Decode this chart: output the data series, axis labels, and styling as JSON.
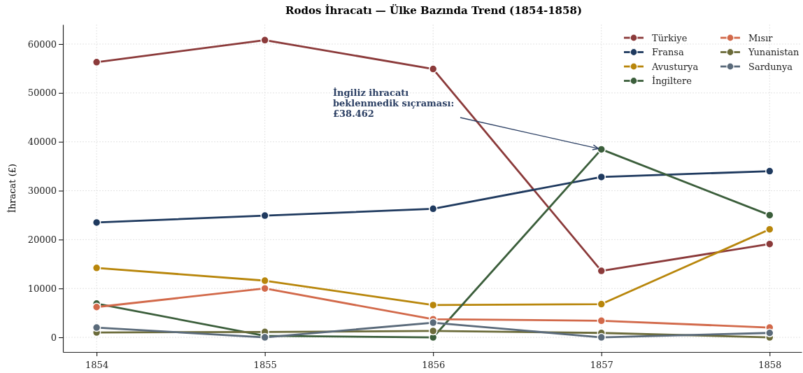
{
  "chart_data": {
    "type": "line",
    "title": "Rodos İhracatı — Ülke Bazında Trend (1854-1858)",
    "ylabel": "İhracat (£)",
    "x": [
      1854,
      1855,
      1856,
      1857,
      1858
    ],
    "xlim": [
      1853.8,
      1858.19
    ],
    "xticks": [
      1854,
      1855,
      1856,
      1857,
      1858
    ],
    "ylim": [
      -3000,
      64000
    ],
    "yticks": [
      0,
      10000,
      20000,
      30000,
      40000,
      50000,
      60000
    ],
    "grid": true,
    "legend": "top right",
    "marker": "circle",
    "line_style": "solid",
    "annotations": [
      {
        "text": "İngiliz ihracatı\nbeklenmedik sıçraması:\n£38.462",
        "x": 1857,
        "y": 38462
      }
    ],
    "series": [
      {
        "name": "Türkiye",
        "color": "#8b3a3a",
        "values": [
          56300,
          60800,
          54900,
          13600,
          19100
        ]
      },
      {
        "name": "Fransa",
        "color": "#1f3a5f",
        "values": [
          23500,
          24900,
          26300,
          32800,
          34000
        ]
      },
      {
        "name": "Avusturya",
        "color": "#b8860b",
        "values": [
          14200,
          11600,
          6600,
          6800,
          22100
        ]
      },
      {
        "name": "İngiltere",
        "color": "#3b5e3b",
        "values": [
          6900,
          300,
          0,
          38462,
          25000
        ]
      },
      {
        "name": "Mısır",
        "color": "#d2694a",
        "values": [
          6200,
          10000,
          3700,
          3400,
          2000
        ]
      },
      {
        "name": "Yunanistan",
        "color": "#6b6b3a",
        "values": [
          1000,
          1100,
          1300,
          900,
          0
        ]
      },
      {
        "name": "Sardunya",
        "color": "#5a6a7a",
        "values": [
          2000,
          0,
          3000,
          0,
          900
        ]
      }
    ]
  }
}
